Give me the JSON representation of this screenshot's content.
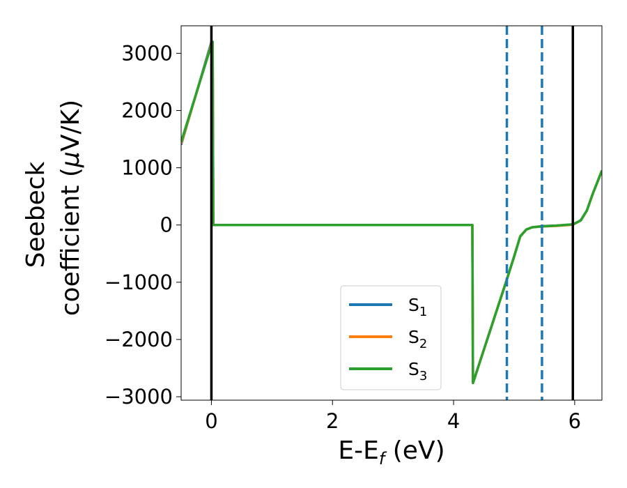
{
  "chart_data": {
    "type": "line",
    "title": "",
    "xlabel": {
      "main": "E-E",
      "sub": "f",
      "suffix": " (eV)"
    },
    "ylabel": {
      "line1": "Seebeck",
      "line2": "coefficient  (",
      "mu": "μ",
      "line2_suffix": "V/K)"
    },
    "xlim": [
      -0.5,
      6.45
    ],
    "ylim": [
      -3060,
      3480
    ],
    "xticks": [
      0,
      2,
      4,
      6
    ],
    "yticks": [
      -3000,
      -2000,
      -1000,
      0,
      1000,
      2000,
      3000
    ],
    "grid": false,
    "legend_position": "lower-center",
    "vertical_lines": [
      {
        "x": 0.0,
        "style": "solid",
        "color": "#000000"
      },
      {
        "x": 5.97,
        "style": "solid",
        "color": "#000000"
      },
      {
        "x": 4.88,
        "style": "dashed",
        "color": "#1f77b4"
      },
      {
        "x": 5.46,
        "style": "dashed",
        "color": "#1f77b4"
      }
    ],
    "series": [
      {
        "name": "S",
        "sub": "1",
        "color": "#1f77b4",
        "x": [
          -0.5,
          0.0,
          0.02,
          0.03,
          4.3,
          4.31,
          4.32,
          4.88,
          5.0,
          5.1,
          5.2,
          5.3,
          5.46,
          5.7,
          5.97,
          6.1,
          6.2,
          6.3,
          6.45
        ],
        "y": [
          1400,
          3200,
          3200,
          0,
          0,
          0,
          -2760,
          -950,
          -550,
          -200,
          -80,
          -40,
          -20,
          -10,
          10,
          80,
          250,
          550,
          950
        ]
      },
      {
        "name": "S",
        "sub": "2",
        "color": "#ff7f0e",
        "x": [
          -0.5,
          0.0,
          0.02,
          0.03,
          4.3,
          4.31,
          4.32,
          4.88,
          5.0,
          5.1,
          5.2,
          5.3,
          5.46,
          5.7,
          5.97,
          6.1,
          6.2,
          6.3,
          6.45
        ],
        "y": [
          1420,
          3170,
          3170,
          0,
          0,
          0,
          -2760,
          -950,
          -550,
          -200,
          -80,
          -40,
          -25,
          -15,
          5,
          80,
          250,
          550,
          950
        ]
      },
      {
        "name": "S",
        "sub": "3",
        "color": "#2ca02c",
        "x": [
          -0.5,
          0.0,
          0.02,
          0.03,
          4.3,
          4.31,
          4.32,
          4.88,
          5.0,
          5.1,
          5.2,
          5.3,
          5.46,
          5.7,
          5.97,
          6.1,
          6.2,
          6.3,
          6.45
        ],
        "y": [
          1450,
          3150,
          3200,
          0,
          0,
          0,
          -2760,
          -950,
          -550,
          -200,
          -80,
          -40,
          -25,
          -10,
          10,
          80,
          250,
          550,
          950
        ]
      }
    ]
  }
}
